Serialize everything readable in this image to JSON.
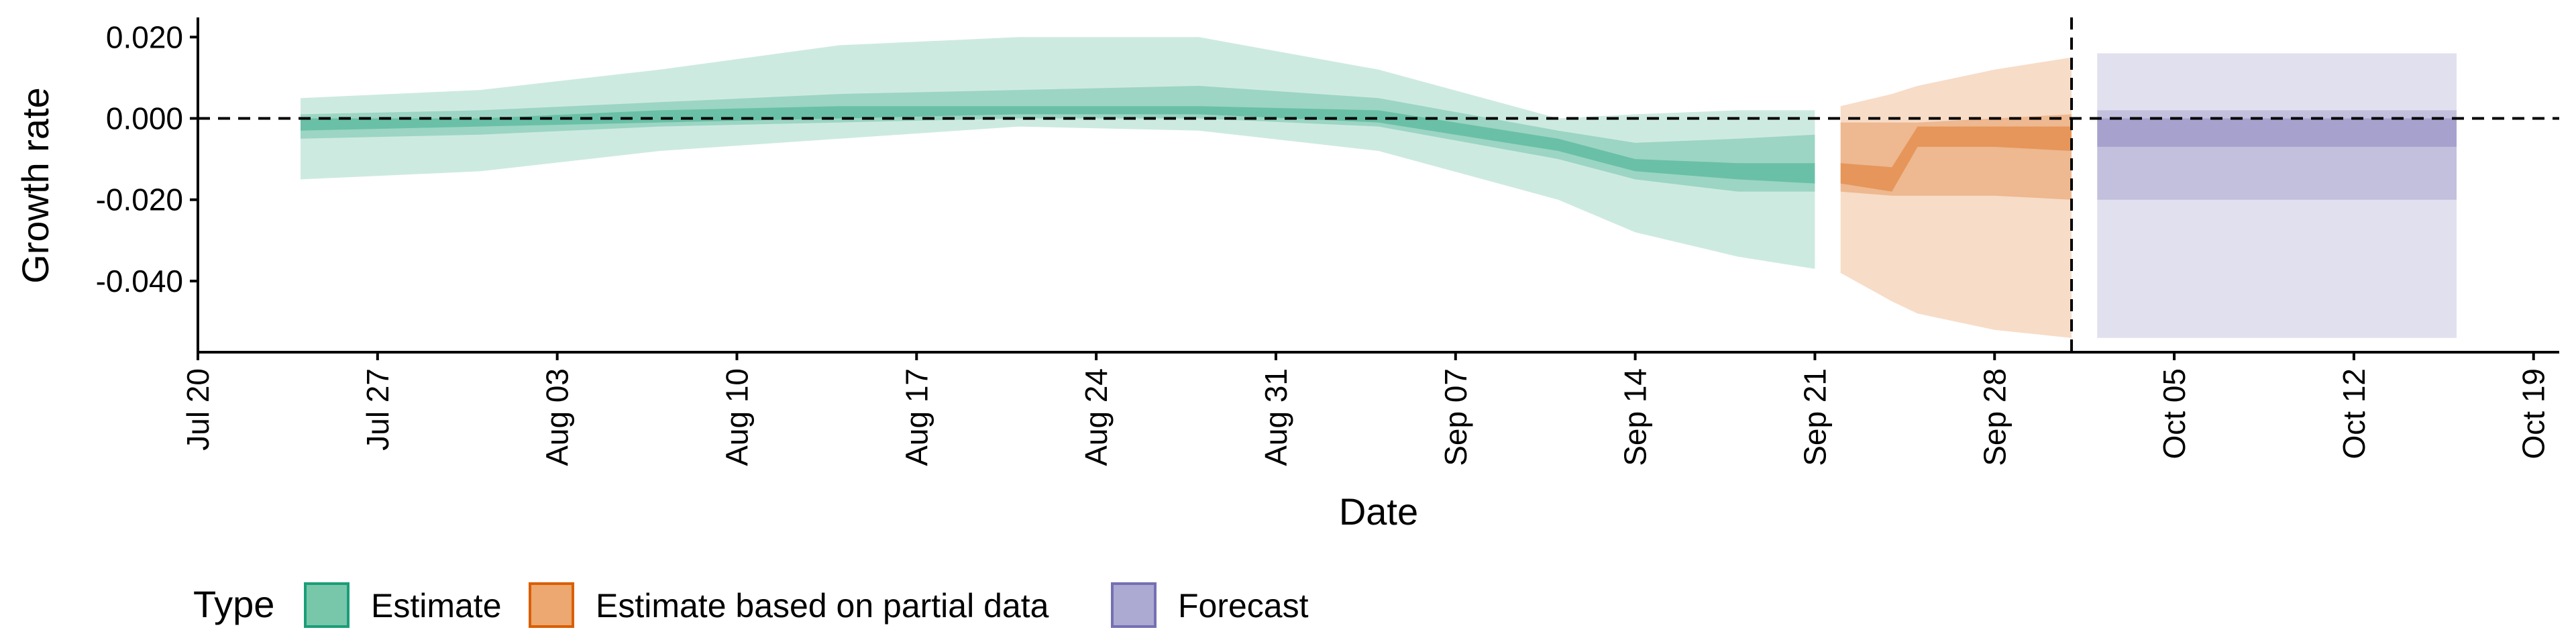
{
  "chart_data": {
    "type": "area",
    "title": "",
    "xlabel": "Date",
    "ylabel": "Growth rate",
    "x_tick_labels": [
      "Jul 20",
      "Jul 27",
      "Aug 03",
      "Aug 10",
      "Aug 17",
      "Aug 24",
      "Aug 31",
      "Sep 07",
      "Sep 14",
      "Sep 21",
      "Sep 28",
      "Oct 05",
      "Oct 12",
      "Oct 19"
    ],
    "y_tick_labels": [
      "0.020",
      "0.000",
      "-0.020",
      "-0.040"
    ],
    "y_ticks": [
      0.02,
      0.0,
      -0.02,
      -0.04
    ],
    "x_range": [
      "2020-07-20",
      "2020-10-20"
    ],
    "ylim": [
      -0.0575,
      0.0245
    ],
    "reference_line_y": 0.0,
    "vertical_line_x": "2020-10-01",
    "grid": false,
    "legend": {
      "title": "Type",
      "position": "bottom",
      "entries": [
        {
          "label": "Estimate",
          "fill": "#79C7AB",
          "stroke": "#1B9E77"
        },
        {
          "label": "Estimate based on partial data",
          "fill": "#EDA770",
          "stroke": "#D95F02"
        },
        {
          "label": "Forecast",
          "fill": "#ACA9D2",
          "stroke": "#7570B3"
        }
      ]
    },
    "series": [
      {
        "name": "Estimate",
        "color": "#1B9E77",
        "x": [
          "2020-07-24",
          "2020-07-31",
          "2020-08-07",
          "2020-08-14",
          "2020-08-21",
          "2020-08-28",
          "2020-09-04",
          "2020-09-11",
          "2020-09-14",
          "2020-09-18",
          "2020-09-21"
        ],
        "lower_90": [
          -0.015,
          -0.013,
          -0.008,
          -0.005,
          -0.002,
          -0.003,
          -0.008,
          -0.02,
          -0.028,
          -0.034,
          -0.037
        ],
        "upper_90": [
          0.005,
          0.007,
          0.012,
          0.018,
          0.02,
          0.02,
          0.012,
          0.0,
          0.001,
          0.002,
          0.002
        ],
        "lower_50": [
          -0.005,
          -0.004,
          -0.002,
          -0.001,
          0.0,
          0.0,
          -0.002,
          -0.01,
          -0.015,
          -0.018,
          -0.018
        ],
        "upper_50": [
          0.001,
          0.002,
          0.004,
          0.006,
          0.007,
          0.008,
          0.005,
          -0.003,
          -0.006,
          -0.005,
          -0.004
        ],
        "lower_20": [
          -0.003,
          -0.002,
          -0.001,
          0.0,
          0.001,
          0.001,
          -0.001,
          -0.008,
          -0.013,
          -0.015,
          -0.016
        ],
        "upper_20": [
          0.0,
          0.0,
          0.002,
          0.003,
          0.003,
          0.003,
          0.002,
          -0.005,
          -0.01,
          -0.011,
          -0.011
        ]
      },
      {
        "name": "Estimate based on partial data",
        "color": "#D95F02",
        "x": [
          "2020-09-22",
          "2020-09-24",
          "2020-09-25",
          "2020-09-28",
          "2020-10-01"
        ],
        "lower_90": [
          -0.038,
          -0.045,
          -0.048,
          -0.052,
          -0.054
        ],
        "upper_90": [
          0.003,
          0.006,
          0.008,
          0.012,
          0.015
        ],
        "lower_50": [
          -0.018,
          -0.019,
          -0.019,
          -0.019,
          -0.02
        ],
        "upper_50": [
          -0.001,
          -0.001,
          -0.001,
          0.0,
          0.001
        ],
        "lower_20": [
          -0.016,
          -0.018,
          -0.007,
          -0.007,
          -0.008
        ],
        "upper_20": [
          -0.011,
          -0.012,
          -0.002,
          -0.002,
          -0.002
        ]
      },
      {
        "name": "Forecast",
        "color": "#7570B3",
        "x": [
          "2020-10-02",
          "2020-10-16"
        ],
        "lower_90": [
          -0.054,
          -0.054
        ],
        "upper_90": [
          0.016,
          0.016
        ],
        "lower_50": [
          -0.02,
          -0.02
        ],
        "upper_50": [
          0.002,
          0.002
        ],
        "lower_20": [
          -0.007,
          -0.007
        ],
        "upper_20": [
          0.0,
          0.0
        ]
      }
    ]
  }
}
